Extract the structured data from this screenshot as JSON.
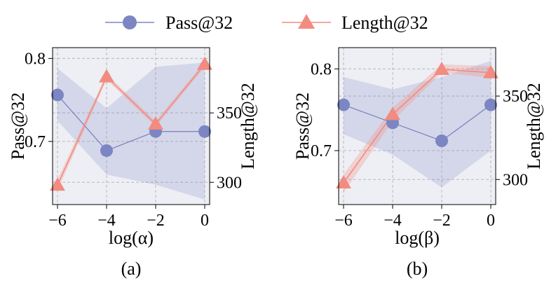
{
  "chart_data": [
    {
      "type": "line",
      "panel_label": "(a)",
      "xlabel": "log(α)",
      "ylabel_left": "Pass@32",
      "ylabel_right": "Length@32",
      "x": [
        -6,
        -4,
        -2,
        0
      ],
      "xlim": [
        -6.2,
        0.2
      ],
      "xticks": [
        "−6",
        "−4",
        "−2",
        "0"
      ],
      "ylim_left": [
        0.624,
        0.813
      ],
      "yticks_left": [
        {
          "v": 0.7,
          "label": "0.7"
        },
        {
          "v": 0.8,
          "label": "0.8"
        }
      ],
      "ylim_right": [
        284,
        397
      ],
      "yticks_right": [
        {
          "v": 300,
          "label": "300"
        },
        {
          "v": 350,
          "label": "350"
        }
      ],
      "grid": true,
      "series": [
        {
          "name": "Pass@32",
          "axis": "left",
          "marker": "circle",
          "color": "#7b86c3",
          "values": [
            0.756,
            0.689,
            0.712,
            0.712
          ],
          "band_low": [
            0.725,
            0.66,
            0.648,
            0.63
          ],
          "band_high": [
            0.788,
            0.74,
            0.79,
            0.795
          ]
        },
        {
          "name": "Length@32",
          "axis": "right",
          "marker": "triangle",
          "color": "#f28b80",
          "values": [
            298,
            376,
            342,
            385
          ],
          "band_low": [
            294,
            374,
            340,
            383
          ],
          "band_high": [
            302,
            378,
            344,
            387
          ]
        }
      ]
    },
    {
      "type": "line",
      "panel_label": "(b)",
      "xlabel": "log(β)",
      "ylabel_left": "Pass@32",
      "ylabel_right": "Length@32",
      "x": [
        -6,
        -4,
        -2,
        0
      ],
      "xlim": [
        -6.2,
        0.2
      ],
      "xticks": [
        "−6",
        "−4",
        "−2",
        "0"
      ],
      "ylim_left": [
        0.634,
        0.826
      ],
      "yticks_left": [
        {
          "v": 0.7,
          "label": "0.7"
        },
        {
          "v": 0.8,
          "label": "0.8"
        }
      ],
      "ylim_right": [
        285,
        379
      ],
      "yticks_right": [
        {
          "v": 300,
          "label": "300"
        },
        {
          "v": 350,
          "label": "350"
        }
      ],
      "grid": true,
      "series": [
        {
          "name": "Pass@32",
          "axis": "left",
          "marker": "circle",
          "color": "#7b86c3",
          "values": [
            0.756,
            0.734,
            0.712,
            0.756
          ],
          "band_low": [
            0.72,
            0.695,
            0.655,
            0.7
          ],
          "band_high": [
            0.79,
            0.775,
            0.79,
            0.81
          ]
        },
        {
          "name": "Length@32",
          "axis": "right",
          "marker": "triangle",
          "color": "#f28b80",
          "values": [
            298,
            339,
            366,
            364
          ],
          "band_low": [
            292,
            335,
            364,
            361
          ],
          "band_high": [
            303,
            343,
            369,
            368
          ]
        }
      ]
    }
  ],
  "legend": {
    "placement": "top-center",
    "items": [
      {
        "label": "Pass@32",
        "marker": "circle",
        "color": "#7b86c3"
      },
      {
        "label": "Length@32",
        "marker": "triangle",
        "color": "#f28b80"
      }
    ]
  }
}
